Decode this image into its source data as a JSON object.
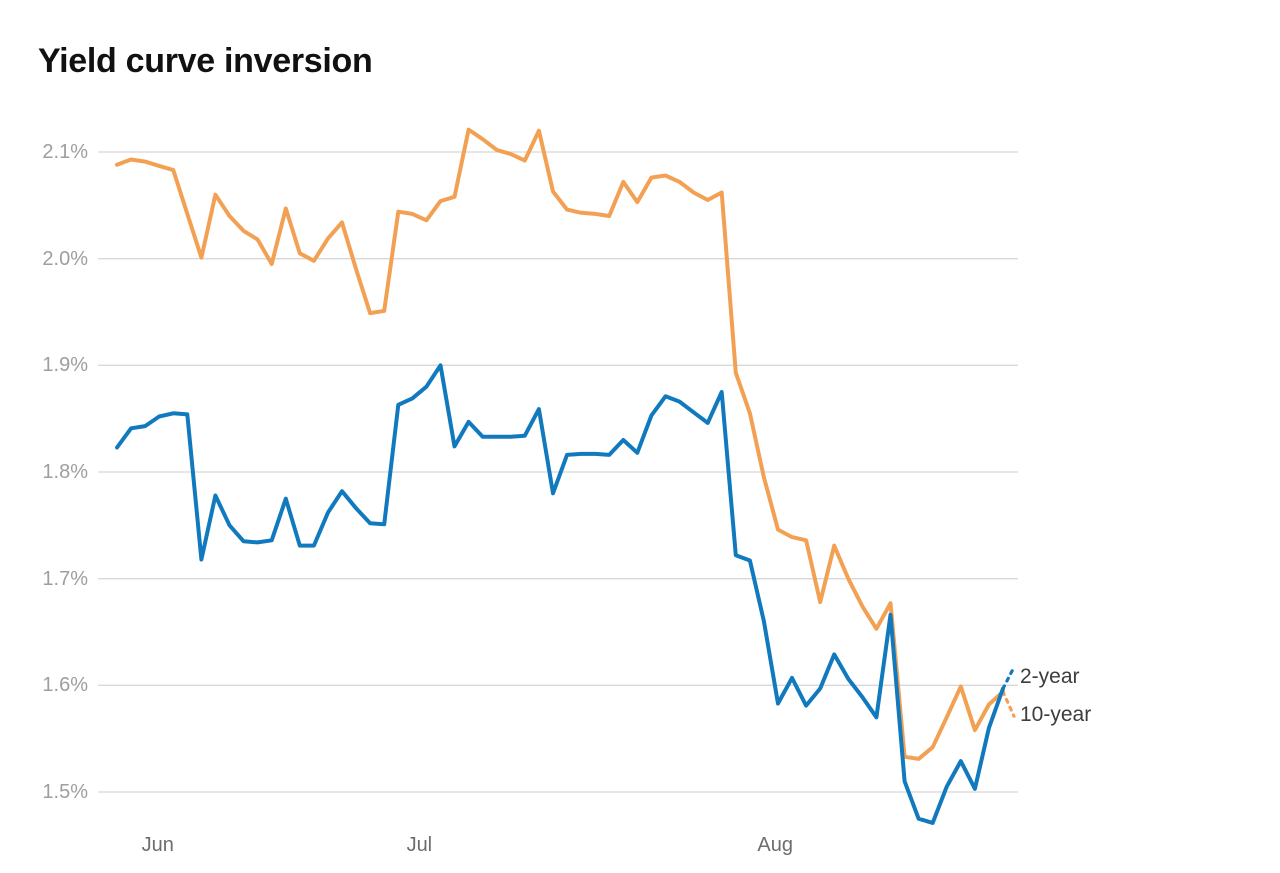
{
  "page": {
    "title": "Yield curve inversion"
  },
  "colors": {
    "two_year_line": "#1179bd",
    "ten_year_line": "#f2a154",
    "gridline": "#d8d8d8",
    "y_tick_text": "#9e9e9e",
    "x_tick_text": "#6d6d6d",
    "end_label_text": "#3d3d3d",
    "title_text": "#111111",
    "background": "#ffffff"
  },
  "chart_data": {
    "type": "line",
    "title": "Yield curve inversion",
    "xlabel": "",
    "ylabel": "",
    "unit": "%",
    "grid": true,
    "legend_position": "end-of-line-right",
    "y_axis": {
      "ticks": [
        {
          "label": "2.1%",
          "value": 2.1
        },
        {
          "label": "2.0%",
          "value": 2.0
        },
        {
          "label": "1.9%",
          "value": 1.9
        },
        {
          "label": "1.8%",
          "value": 1.8
        },
        {
          "label": "1.7%",
          "value": 1.7
        },
        {
          "label": "1.6%",
          "value": 1.6
        },
        {
          "label": "1.5%",
          "value": 1.5
        }
      ],
      "range": [
        1.45,
        2.15
      ]
    },
    "x_axis": {
      "ticks": [
        {
          "label": "Jun",
          "index": 2.9
        },
        {
          "label": "Jul",
          "index": 21.5
        },
        {
          "label": "Aug",
          "index": 46.8
        }
      ]
    },
    "series": [
      {
        "name": "10-year",
        "end_label": "10-year",
        "color": "#f2a154",
        "dash_tail_value": 1.571,
        "values": [
          2.088,
          2.093,
          2.091,
          2.087,
          2.083,
          2.042,
          2.001,
          2.06,
          2.04,
          2.026,
          2.018,
          1.995,
          2.047,
          2.005,
          1.998,
          2.019,
          2.034,
          1.99,
          1.949,
          1.951,
          2.044,
          2.042,
          2.036,
          2.054,
          2.058,
          2.121,
          2.112,
          2.102,
          2.098,
          2.092,
          2.12,
          2.063,
          2.046,
          2.043,
          2.042,
          2.04,
          2.072,
          2.053,
          2.076,
          2.078,
          2.072,
          2.062,
          2.055,
          2.062,
          1.893,
          1.855,
          1.795,
          1.746,
          1.739,
          1.736,
          1.678,
          1.731,
          1.7,
          1.674,
          1.653,
          1.677,
          1.533,
          1.531,
          1.542,
          1.57,
          1.599,
          1.558,
          1.582,
          1.594
        ]
      },
      {
        "name": "2-year",
        "end_label": "2-year",
        "color": "#1179bd",
        "dash_tail_value": 1.617,
        "values": [
          1.823,
          1.841,
          1.843,
          1.852,
          1.855,
          1.854,
          1.718,
          1.778,
          1.75,
          1.735,
          1.734,
          1.736,
          1.775,
          1.731,
          1.731,
          1.762,
          1.782,
          1.766,
          1.752,
          1.751,
          1.863,
          1.869,
          1.88,
          1.9,
          1.824,
          1.847,
          1.833,
          1.833,
          1.833,
          1.834,
          1.859,
          1.78,
          1.816,
          1.817,
          1.817,
          1.816,
          1.83,
          1.818,
          1.853,
          1.871,
          1.866,
          1.856,
          1.846,
          1.875,
          1.722,
          1.717,
          1.66,
          1.583,
          1.607,
          1.581,
          1.597,
          1.629,
          1.606,
          1.589,
          1.57,
          1.666,
          1.51,
          1.475,
          1.471,
          1.505,
          1.529,
          1.503,
          1.56,
          1.597
        ]
      }
    ]
  }
}
